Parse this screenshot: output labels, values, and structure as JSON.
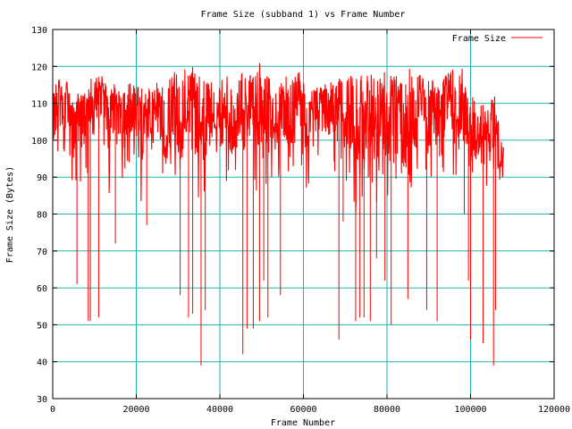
{
  "chart_data": {
    "type": "line",
    "title": "Frame Size (subband 1) vs Frame Number",
    "xlabel": "Frame Number",
    "ylabel": "Frame Size (Bytes)",
    "xlim": [
      0,
      120000
    ],
    "ylim": [
      30,
      130
    ],
    "x_ticks": [
      0,
      20000,
      40000,
      60000,
      80000,
      100000,
      120000
    ],
    "x_tick_labels": [
      "0",
      "20000",
      "40000",
      "60000",
      "80000",
      "100000",
      "120000"
    ],
    "y_ticks": [
      30,
      40,
      50,
      60,
      70,
      80,
      90,
      100,
      110,
      120,
      130
    ],
    "y_tick_labels": [
      "30",
      "40",
      "50",
      "60",
      "70",
      "80",
      "90",
      "100",
      "110",
      "120",
      "130"
    ],
    "grid": true,
    "legend_position": "top-right",
    "colors": {
      "series": "#ff0000",
      "grid": "#20b2aa",
      "axes": "#000000"
    },
    "series": [
      {
        "name": "Frame Size",
        "x": [
          0,
          1500,
          2500,
          3500,
          5000,
          6000,
          7000,
          8200,
          9000,
          10000,
          11000,
          12500,
          13500,
          15000,
          16500,
          18000,
          19500,
          21000,
          22500,
          23500,
          25000,
          27000,
          29000,
          30500,
          31500,
          32500,
          33500,
          34500,
          35500,
          36500,
          37500,
          39000,
          41000,
          43000,
          45000,
          46000,
          47500,
          49000,
          50000,
          51000,
          52000,
          53500,
          55000,
          57000,
          59000,
          61000,
          63000,
          65000,
          67000,
          68500,
          70000,
          71500,
          72500,
          73500,
          74500,
          75500,
          77000,
          79000,
          80500,
          82000,
          84000,
          85500,
          87000,
          88500,
          90000,
          91500,
          93000,
          95000,
          97000,
          98500,
          100000,
          101500,
          103000,
          104500,
          105500,
          106500,
          107500,
          108000
        ],
        "values": [
          106,
          113,
          108,
          112,
          103,
          110,
          108,
          109,
          112,
          110,
          115,
          112,
          104,
          110,
          102,
          107,
          111,
          100,
          106,
          103,
          111,
          97,
          110,
          99,
          112,
          108,
          118,
          100,
          105,
          97,
          111,
          103,
          107,
          104,
          110,
          101,
          109,
          103,
          113,
          102,
          108,
          103,
          109,
          104,
          112,
          104,
          109,
          110,
          108,
          112,
          104,
          106,
          97,
          109,
          101,
          111,
          100,
          110,
          102,
          110,
          99,
          108,
          103,
          111,
          104,
          106,
          104,
          111,
          107,
          111,
          98,
          101,
          103,
          100,
          110,
          97,
          93,
          94
        ],
        "range_min": [
          88,
          95,
          90,
          95,
          82,
          94,
          85,
          88,
          95,
          90,
          97,
          95,
          85,
          92,
          87,
          90,
          95,
          82,
          88,
          86,
          94,
          88,
          92,
          80,
          95,
          88,
          98,
          80,
          88,
          80,
          94,
          86,
          90,
          84,
          92,
          80,
          92,
          84,
          94,
          84,
          90,
          85,
          92,
          88,
          95,
          85,
          92,
          94,
          90,
          95,
          84,
          88,
          80,
          88,
          82,
          90,
          80,
          88,
          82,
          90,
          82,
          88,
          84,
          92,
          86,
          90,
          86,
          92,
          88,
          92,
          88,
          88,
          90,
          85,
          92,
          88,
          88,
          88
        ],
        "range_max": [
          113,
          118,
          114,
          117,
          110,
          114,
          112,
          114,
          117,
          116,
          119,
          118,
          113,
          116,
          113,
          115,
          117,
          114,
          116,
          114,
          117,
          114,
          119,
          117,
          120,
          118,
          125,
          116,
          119,
          116,
          118,
          115,
          117,
          118,
          120,
          117,
          118,
          119,
          126,
          118,
          118,
          116,
          119,
          117,
          120,
          113,
          115,
          116,
          116,
          117,
          116,
          118,
          117,
          118,
          117,
          119,
          117,
          120,
          118,
          118,
          116,
          120,
          117,
          119,
          116,
          117,
          116,
          120,
          118,
          121,
          115,
          110,
          110,
          108,
          114,
          106,
          100,
          98
        ]
      }
    ],
    "dips": [
      {
        "x": 5800,
        "min": 61
      },
      {
        "x": 8500,
        "min": 51
      },
      {
        "x": 9000,
        "min": 51
      },
      {
        "x": 11000,
        "min": 52
      },
      {
        "x": 15000,
        "min": 72
      },
      {
        "x": 22500,
        "min": 77
      },
      {
        "x": 30500,
        "min": 58
      },
      {
        "x": 32500,
        "min": 52
      },
      {
        "x": 33500,
        "min": 53
      },
      {
        "x": 35500,
        "min": 39
      },
      {
        "x": 36500,
        "min": 54
      },
      {
        "x": 45500,
        "min": 42
      },
      {
        "x": 46500,
        "min": 49
      },
      {
        "x": 48000,
        "min": 49
      },
      {
        "x": 49500,
        "min": 51
      },
      {
        "x": 50500,
        "min": 62
      },
      {
        "x": 51500,
        "min": 52
      },
      {
        "x": 54500,
        "min": 58
      },
      {
        "x": 68500,
        "min": 46
      },
      {
        "x": 69500,
        "min": 78
      },
      {
        "x": 72500,
        "min": 51
      },
      {
        "x": 73500,
        "min": 52
      },
      {
        "x": 74500,
        "min": 52
      },
      {
        "x": 76000,
        "min": 51
      },
      {
        "x": 77500,
        "min": 68
      },
      {
        "x": 79500,
        "min": 62
      },
      {
        "x": 81000,
        "min": 50
      },
      {
        "x": 85000,
        "min": 57
      },
      {
        "x": 89500,
        "min": 54
      },
      {
        "x": 92000,
        "min": 51
      },
      {
        "x": 98500,
        "min": 80
      },
      {
        "x": 99500,
        "min": 62
      },
      {
        "x": 100000,
        "min": 46
      },
      {
        "x": 103000,
        "min": 45
      },
      {
        "x": 105500,
        "min": 39
      },
      {
        "x": 106000,
        "min": 54
      }
    ]
  }
}
